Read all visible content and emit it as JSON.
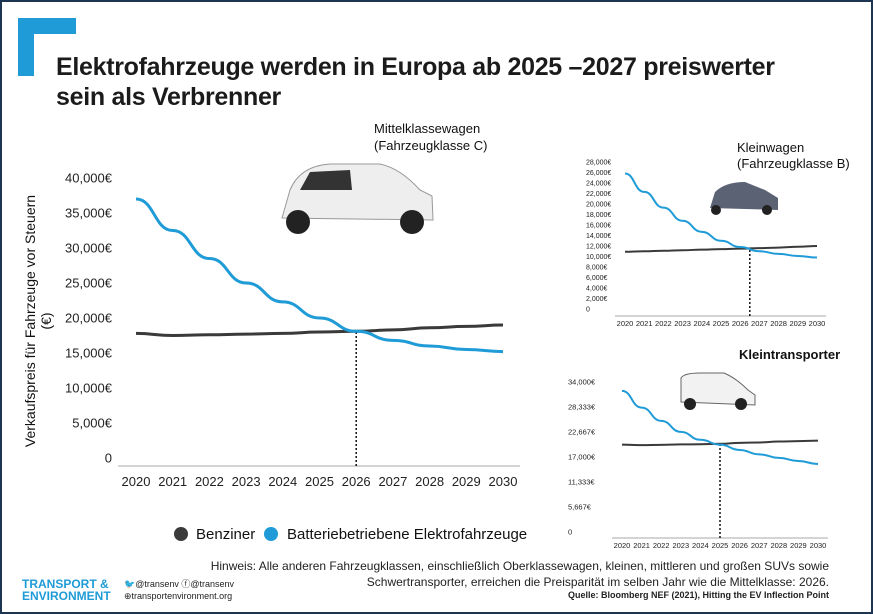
{
  "title": "Elektrofahrzeuge werden in Europa ab 2025 –2027 preiswerter sein als Verbrenner",
  "colors": {
    "benziner": "#3a3a3a",
    "ev": "#1f9bd7",
    "accent": "#1f9bd7",
    "frame": "#1d3550"
  },
  "legend": {
    "benziner": "Benziner",
    "ev": "Batteriebetriebene Elektrofahrzeuge"
  },
  "ylabel": "Verkaufspreis für Fahrzeuge vor Steuern  (€)",
  "note_line1": "Hinweis: Alle anderen Fahrzeugklassen, einschließlich Oberklassewagen, kleinen, mittleren und großen SUVs sowie",
  "note_line2": "Schwertransporter, erreichen die Preisparität im selben Jahr wie die Mittelklasse: 2026.",
  "source": "Quelle: Bloomberg NEF (2021), Hitting the EV Inflection Point",
  "logo": {
    "line1": "TRANSPORT &",
    "line2": "ENVIRONMENT",
    "twitter": "@transenv",
    "facebook": "@transenv",
    "web": "transportenvironment.org"
  },
  "chart_data": [
    {
      "type": "line",
      "title": "Mittelklassewagen\n(Fahrzeugklasse C)",
      "title1": "Mittelklassewagen",
      "title2": "(Fahrzeugklasse C)",
      "ylabel": "Verkaufspreis für Fahrzeuge vor Steuern  (€)",
      "x": [
        2020,
        2021,
        2022,
        2023,
        2024,
        2025,
        2026,
        2027,
        2028,
        2029,
        2030
      ],
      "ylim": [
        0,
        40000
      ],
      "yticks": [
        "0",
        "5,000€",
        "10,000€",
        "15,000€",
        "20,000€",
        "25,000€",
        "30,000€",
        "35,000€",
        "40,000€"
      ],
      "ytick_values": [
        0,
        5000,
        10000,
        15000,
        20000,
        25000,
        30000,
        35000,
        40000
      ],
      "parity_year": 2026,
      "series": [
        {
          "name": "Benziner",
          "values": [
            17800,
            17500,
            17600,
            17700,
            17800,
            18000,
            18100,
            18300,
            18600,
            18800,
            19000
          ]
        },
        {
          "name": "Batteriebetriebene Elektrofahrzeuge",
          "values": [
            37000,
            32500,
            28500,
            25000,
            22300,
            20000,
            18100,
            16800,
            16000,
            15500,
            15200
          ]
        }
      ]
    },
    {
      "type": "line",
      "title1": "Kleinwagen",
      "title2": "(Fahrzeugklasse B)",
      "x": [
        2020,
        2021,
        2022,
        2023,
        2024,
        2025,
        2026,
        2027,
        2028,
        2029,
        2030
      ],
      "ylim": [
        0,
        28000
      ],
      "yticks": [
        "0",
        "2,000€",
        "4,000€",
        "6,000€",
        "8,000€",
        "10,000€",
        "12,000€",
        "14,000€",
        "16,000€",
        "18,000€",
        "20,000€",
        "22,000€",
        "24,000€",
        "26,000€",
        "28,000€"
      ],
      "ytick_values": [
        0,
        2000,
        4000,
        6000,
        8000,
        10000,
        12000,
        14000,
        16000,
        18000,
        20000,
        22000,
        24000,
        26000,
        28000
      ],
      "parity_year": 2026.5,
      "series": [
        {
          "name": "Benziner",
          "values": [
            10900,
            11000,
            11100,
            11200,
            11300,
            11400,
            11500,
            11600,
            11700,
            11850,
            12000
          ]
        },
        {
          "name": "Batteriebetriebene Elektrofahrzeuge",
          "values": [
            25800,
            22300,
            19300,
            16800,
            14700,
            13000,
            11800,
            11000,
            10500,
            10100,
            9800
          ]
        }
      ]
    },
    {
      "type": "line",
      "title1": "Kleintransporter",
      "title2": "",
      "x": [
        2020,
        2021,
        2022,
        2023,
        2024,
        2025,
        2026,
        2027,
        2028,
        2029,
        2030
      ],
      "ylim": [
        0,
        34000
      ],
      "yticks": [
        "0",
        "5,667€",
        "11,333€",
        "17,000€",
        "22,667€",
        "28,333€",
        "34,000€"
      ],
      "ytick_values": [
        0,
        5667,
        11333,
        17000,
        22667,
        28333,
        34000
      ],
      "parity_year": 2025,
      "series": [
        {
          "name": "Benziner",
          "values": [
            19800,
            19700,
            19750,
            19850,
            19900,
            20000,
            20200,
            20300,
            20500,
            20600,
            20700
          ]
        },
        {
          "name": "Batteriebetriebene Elektrofahrzeuge",
          "values": [
            32000,
            28200,
            25200,
            22700,
            20900,
            19800,
            18600,
            17600,
            16800,
            16100,
            15400
          ]
        }
      ]
    }
  ]
}
